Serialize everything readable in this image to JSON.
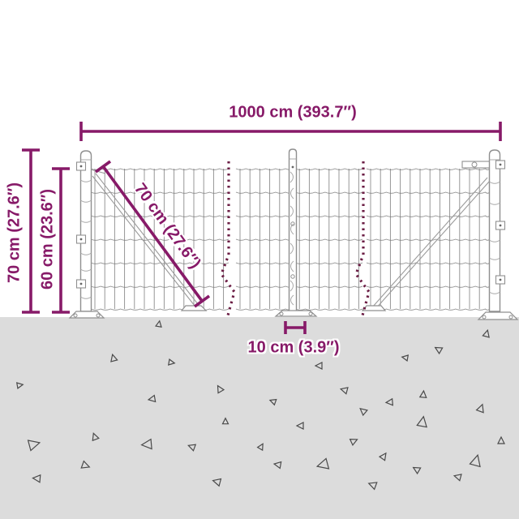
{
  "diagram": {
    "name": "wire-mesh-fence-dimension-diagram",
    "labels": {
      "width": "1000 cm (393.7″)",
      "total_height": "70 cm (27.6″)",
      "mesh_height": "60 cm (23.6″)",
      "mesh_diagonal": "70 cm (27.6″)",
      "ground_clearance": "10 cm (3.9″)"
    },
    "colors": {
      "dimension_accent": "#871a68",
      "break_line": "#6b1d44",
      "ground": "#dcdcdc",
      "wire": "#787878",
      "post_outline": "#8f8f8f",
      "triangle_outline": "#4a4a4a",
      "background": "#ffffff"
    }
  }
}
